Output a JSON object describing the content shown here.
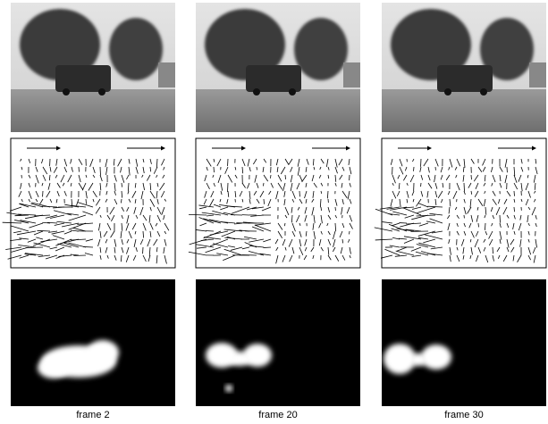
{
  "panels": [
    {
      "caption": "frame 2"
    },
    {
      "caption": "frame 20"
    },
    {
      "caption": "frame 30"
    }
  ]
}
